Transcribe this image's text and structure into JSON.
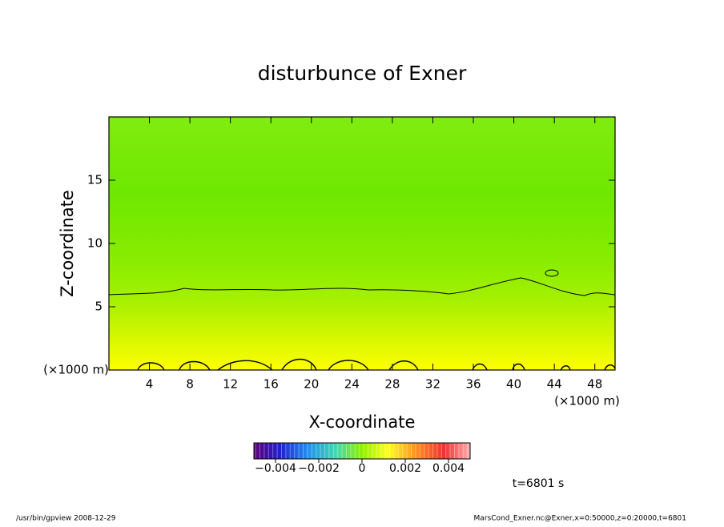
{
  "chart_data": {
    "type": "contour",
    "title": "disturbunce of Exner",
    "x_label": "X-coordinate",
    "y_label": "Z-coordinate",
    "x_unit_left": "(×1000 m)",
    "x_unit_right": "(×1000 m)",
    "xlim": [
      0,
      50
    ],
    "xticks": [
      4,
      8,
      12,
      16,
      20,
      24,
      28,
      32,
      36,
      40,
      44,
      48
    ],
    "ylim": [
      0,
      20
    ],
    "yticks": [
      5,
      10,
      15
    ],
    "colorbar": {
      "lim": [
        -0.005,
        0.005
      ],
      "ticks": [
        {
          "value": -0.004,
          "label": "−0.004"
        },
        {
          "value": -0.002,
          "label": "−0.002"
        },
        0,
        0.002,
        0.004
      ]
    },
    "time_label": "t=6801 s",
    "footer_left": "/usr/bin/gpview   2008-12-29",
    "footer_right": "MarsCond_Exner.nc@Exner,x=0:50000,z=0:20000,t=6801"
  }
}
